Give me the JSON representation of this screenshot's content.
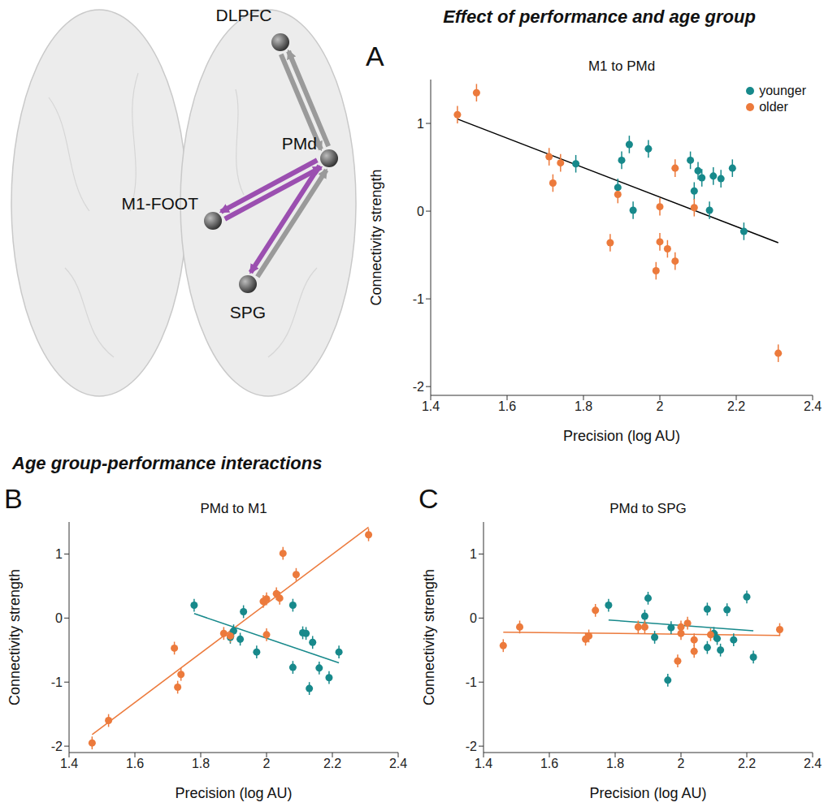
{
  "sections": [
    "Effect of performance and age group",
    "Age group-performance interactions"
  ],
  "diagram": {
    "nodes": [
      "DLPFC",
      "PMd",
      "M1-FOOT",
      "SPG"
    ],
    "edges": [
      {
        "from": "DLPFC",
        "to": "PMd",
        "color": "#9a9a9a"
      },
      {
        "from": "PMd",
        "to": "DLPFC",
        "color": "#9a9a9a"
      },
      {
        "from": "PMd",
        "to": "M1-FOOT",
        "color": "#9b4fb0"
      },
      {
        "from": "M1-FOOT",
        "to": "PMd",
        "color": "#9b4fb0"
      },
      {
        "from": "PMd",
        "to": "SPG",
        "color": "#9b4fb0"
      },
      {
        "from": "SPG",
        "to": "PMd",
        "color": "#9a9a9a"
      }
    ]
  },
  "chart_data": [
    {
      "type": "scatter",
      "panel": "A",
      "title": "M1 to PMd",
      "section": 0,
      "xlabel": "Precision (log AU)",
      "ylabel": "Connectivity strength",
      "xlim": [
        1.4,
        2.4
      ],
      "xticks": [
        1.4,
        1.6,
        1.8,
        2,
        2.2,
        2.4
      ],
      "ylim": [
        -2.1,
        1.5
      ],
      "yticks": [
        -2,
        -1,
        0,
        1
      ],
      "legend": "upper right",
      "series": [
        {
          "name": "younger",
          "color": "#17898b",
          "x": [
            1.78,
            1.89,
            1.9,
            1.92,
            1.93,
            1.97,
            2.08,
            2.09,
            2.1,
            2.11,
            2.13,
            2.14,
            2.16,
            2.19,
            2.22
          ],
          "values": [
            0.54,
            0.27,
            0.58,
            0.76,
            0.01,
            0.71,
            0.58,
            0.23,
            0.46,
            0.38,
            0.01,
            0.4,
            0.37,
            0.49,
            -0.23
          ],
          "errors": [
            0.1,
            0.1,
            0.1,
            0.1,
            0.1,
            0.1,
            0.1,
            0.1,
            0.1,
            0.1,
            0.1,
            0.1,
            0.1,
            0.1,
            0.1
          ]
        },
        {
          "name": "older",
          "color": "#ec7a3c",
          "x": [
            1.47,
            1.52,
            1.71,
            1.72,
            1.74,
            1.87,
            1.89,
            1.99,
            2.0,
            2.0,
            2.02,
            2.04,
            2.04,
            2.09,
            2.31
          ],
          "values": [
            1.1,
            1.35,
            0.62,
            0.32,
            0.55,
            -0.36,
            0.19,
            -0.68,
            -0.35,
            0.05,
            -0.43,
            -0.57,
            0.49,
            0.04,
            -1.62
          ],
          "errors": [
            0.1,
            0.1,
            0.1,
            0.1,
            0.1,
            0.1,
            0.1,
            0.1,
            0.1,
            0.1,
            0.1,
            0.1,
            0.1,
            0.1,
            0.1
          ]
        }
      ],
      "fits": [
        {
          "color": "#000000",
          "x": [
            1.47,
            2.31
          ],
          "y": [
            1.05,
            -0.36
          ]
        }
      ]
    },
    {
      "type": "scatter",
      "panel": "B",
      "title": "PMd to M1",
      "section": 1,
      "xlabel": "Precision (log AU)",
      "ylabel": "Connectivity strength",
      "xlim": [
        1.4,
        2.4
      ],
      "xticks": [
        1.4,
        1.6,
        1.8,
        2,
        2.2,
        2.4
      ],
      "ylim": [
        -2.1,
        1.5
      ],
      "yticks": [
        -2,
        -1,
        0,
        1
      ],
      "series": [
        {
          "name": "younger",
          "color": "#17898b",
          "x": [
            1.78,
            1.89,
            1.9,
            1.92,
            1.93,
            1.97,
            2.08,
            2.08,
            2.11,
            2.12,
            2.13,
            2.14,
            2.16,
            2.19,
            2.22
          ],
          "values": [
            0.2,
            -0.3,
            -0.2,
            -0.33,
            0.1,
            -0.53,
            0.2,
            -0.77,
            -0.23,
            -0.24,
            -1.1,
            -0.38,
            -0.78,
            -0.93,
            -0.53
          ],
          "errors": [
            0.1,
            0.1,
            0.1,
            0.1,
            0.1,
            0.1,
            0.1,
            0.1,
            0.1,
            0.1,
            0.1,
            0.1,
            0.1,
            0.1,
            0.1
          ]
        },
        {
          "name": "older",
          "color": "#ec7a3c",
          "x": [
            1.47,
            1.52,
            1.72,
            1.73,
            1.74,
            1.87,
            1.89,
            1.99,
            2.0,
            2.0,
            2.03,
            2.04,
            2.05,
            2.09,
            2.31
          ],
          "values": [
            -1.95,
            -1.6,
            -0.47,
            -1.08,
            -0.88,
            -0.24,
            -0.28,
            0.26,
            0.3,
            -0.26,
            0.38,
            0.31,
            1.01,
            0.68,
            1.3
          ],
          "errors": [
            0.1,
            0.1,
            0.1,
            0.1,
            0.1,
            0.1,
            0.1,
            0.1,
            0.1,
            0.1,
            0.1,
            0.1,
            0.1,
            0.1,
            0.1
          ]
        }
      ],
      "fits": [
        {
          "color": "#17898b",
          "x": [
            1.78,
            2.22
          ],
          "y": [
            0.07,
            -0.7
          ]
        },
        {
          "color": "#ec7a3c",
          "x": [
            1.47,
            2.31
          ],
          "y": [
            -1.82,
            1.42
          ]
        }
      ]
    },
    {
      "type": "scatter",
      "panel": "C",
      "title": "PMd to SPG",
      "section": 1,
      "xlabel": "Precision (log AU)",
      "ylabel": "Connectivity strength",
      "xlim": [
        1.4,
        2.4
      ],
      "xticks": [
        1.4,
        1.6,
        1.8,
        2,
        2.2,
        2.4
      ],
      "ylim": [
        -2.1,
        1.5
      ],
      "yticks": [
        -2,
        -1,
        0,
        1
      ],
      "series": [
        {
          "name": "younger",
          "color": "#17898b",
          "x": [
            1.78,
            1.89,
            1.9,
            1.92,
            1.96,
            1.97,
            2.08,
            2.08,
            2.1,
            2.11,
            2.12,
            2.14,
            2.16,
            2.2,
            2.22
          ],
          "values": [
            0.2,
            0.03,
            0.31,
            -0.3,
            -0.97,
            -0.15,
            0.14,
            -0.46,
            -0.24,
            -0.32,
            -0.5,
            0.13,
            -0.34,
            0.33,
            -0.61
          ],
          "errors": [
            0.1,
            0.1,
            0.1,
            0.1,
            0.1,
            0.1,
            0.1,
            0.1,
            0.1,
            0.1,
            0.1,
            0.1,
            0.1,
            0.1,
            0.1
          ]
        },
        {
          "name": "older",
          "color": "#ec7a3c",
          "x": [
            1.46,
            1.51,
            1.71,
            1.72,
            1.74,
            1.87,
            1.89,
            1.99,
            2.0,
            2.0,
            2.02,
            2.04,
            2.04,
            2.09,
            2.3
          ],
          "values": [
            -0.43,
            -0.14,
            -0.33,
            -0.28,
            0.12,
            -0.14,
            -0.14,
            -0.67,
            -0.24,
            -0.14,
            -0.08,
            -0.52,
            -0.34,
            -0.26,
            -0.18
          ],
          "errors": [
            0.1,
            0.1,
            0.1,
            0.1,
            0.1,
            0.1,
            0.1,
            0.1,
            0.1,
            0.1,
            0.1,
            0.1,
            0.1,
            0.1,
            0.1
          ]
        }
      ],
      "fits": [
        {
          "color": "#17898b",
          "x": [
            1.78,
            2.22
          ],
          "y": [
            -0.03,
            -0.2
          ]
        },
        {
          "color": "#ec7a3c",
          "x": [
            1.46,
            2.3
          ],
          "y": [
            -0.22,
            -0.27
          ]
        }
      ]
    }
  ]
}
